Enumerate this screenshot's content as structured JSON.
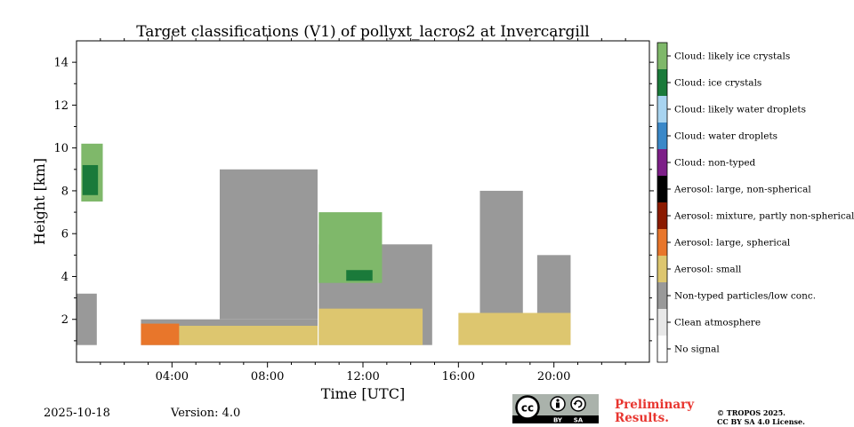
{
  "chart_data": {
    "type": "heatmap",
    "title": "Target classifications (V1) of pollyxt_lacros2 at Invercargill",
    "xlabel": "Time [UTC]",
    "ylabel": "Height [km]",
    "xlim": [
      0,
      24
    ],
    "ylim": [
      0,
      15
    ],
    "x_ticks": [
      {
        "value": 4,
        "label": "04:00"
      },
      {
        "value": 8,
        "label": "08:00"
      },
      {
        "value": 12,
        "label": "12:00"
      },
      {
        "value": 16,
        "label": "16:00"
      },
      {
        "value": 20,
        "label": "20:00"
      }
    ],
    "y_ticks": [
      {
        "value": 2,
        "label": "2"
      },
      {
        "value": 4,
        "label": "4"
      },
      {
        "value": 6,
        "label": "6"
      },
      {
        "value": 8,
        "label": "8"
      },
      {
        "value": 10,
        "label": "10"
      },
      {
        "value": 12,
        "label": "12"
      },
      {
        "value": 14,
        "label": "14"
      }
    ],
    "classes": [
      {
        "label": "No signal",
        "color": "#ffffff"
      },
      {
        "label": "Clean atmosphere",
        "color": "#e8e8e8"
      },
      {
        "label": "Non-typed particles/low conc.",
        "color": "#999999"
      },
      {
        "label": "Aerosol: small",
        "color": "#ddc66f"
      },
      {
        "label": "Aerosol: large, spherical",
        "color": "#e8762b"
      },
      {
        "label": "Aerosol: mixture, partly non-spherical",
        "color": "#8b1a00"
      },
      {
        "label": "Aerosol: large, non-spherical",
        "color": "#000000"
      },
      {
        "label": "Cloud: non-typed",
        "color": "#7d1f88"
      },
      {
        "label": "Cloud: water droplets",
        "color": "#3a88c8"
      },
      {
        "label": "Cloud: likely water droplets",
        "color": "#a8d4f0"
      },
      {
        "label": "Cloud: ice crystals",
        "color": "#1a7a3a"
      },
      {
        "label": "Cloud: likely ice crystals",
        "color": "#7fb86a"
      }
    ],
    "regions": [
      {
        "class": "Non-typed particles/low conc.",
        "x": [
          0,
          0.85
        ],
        "y": [
          0.8,
          3.2
        ]
      },
      {
        "class": "Non-typed particles/low conc.",
        "x": [
          2.7,
          10.1
        ],
        "y": [
          0.8,
          2.0
        ]
      },
      {
        "class": "Non-typed particles/low conc.",
        "x": [
          6.0,
          10.1
        ],
        "y": [
          2.0,
          9.0
        ]
      },
      {
        "class": "Non-typed particles/low conc.",
        "x": [
          10.15,
          14.9
        ],
        "y": [
          0.8,
          5.5
        ]
      },
      {
        "class": "Non-typed particles/low conc.",
        "x": [
          16.9,
          18.7
        ],
        "y": [
          1.8,
          8.0
        ]
      },
      {
        "class": "Non-typed particles/low conc.",
        "x": [
          19.3,
          20.7
        ],
        "y": [
          1.5,
          5.0
        ]
      },
      {
        "class": "Aerosol: large, spherical",
        "x": [
          2.7,
          4.3
        ],
        "y": [
          0.8,
          1.8
        ]
      },
      {
        "class": "Aerosol: small",
        "x": [
          4.3,
          10.1
        ],
        "y": [
          0.8,
          1.7
        ]
      },
      {
        "class": "Aerosol: small",
        "x": [
          10.15,
          14.5
        ],
        "y": [
          0.8,
          2.5
        ]
      },
      {
        "class": "Aerosol: small",
        "x": [
          16.0,
          20.7
        ],
        "y": [
          0.8,
          2.3
        ]
      },
      {
        "class": "Cloud: likely ice crystals",
        "x": [
          0.2,
          1.1
        ],
        "y": [
          7.5,
          10.2
        ]
      },
      {
        "class": "Cloud: ice crystals",
        "x": [
          0.25,
          0.9
        ],
        "y": [
          7.8,
          9.2
        ]
      },
      {
        "class": "Cloud: likely ice crystals",
        "x": [
          10.15,
          12.8
        ],
        "y": [
          3.7,
          7.0
        ]
      },
      {
        "class": "Cloud: ice crystals",
        "x": [
          11.3,
          12.4
        ],
        "y": [
          3.8,
          4.3
        ]
      }
    ]
  },
  "footer": {
    "date": "2025-10-18",
    "version": "Version: 4.0",
    "preliminary_line1": "Preliminary",
    "preliminary_line2": "Results.",
    "copyright_line1": "© TROPOS 2025.",
    "copyright_line2": "CC BY SA 4.0 License.",
    "cc_by": "BY",
    "cc_sa": "SA"
  },
  "colors": {
    "preliminary": "#e8352f"
  },
  "icons": [
    "creative-commons-icon",
    "attribution-icon",
    "share-alike-icon"
  ]
}
